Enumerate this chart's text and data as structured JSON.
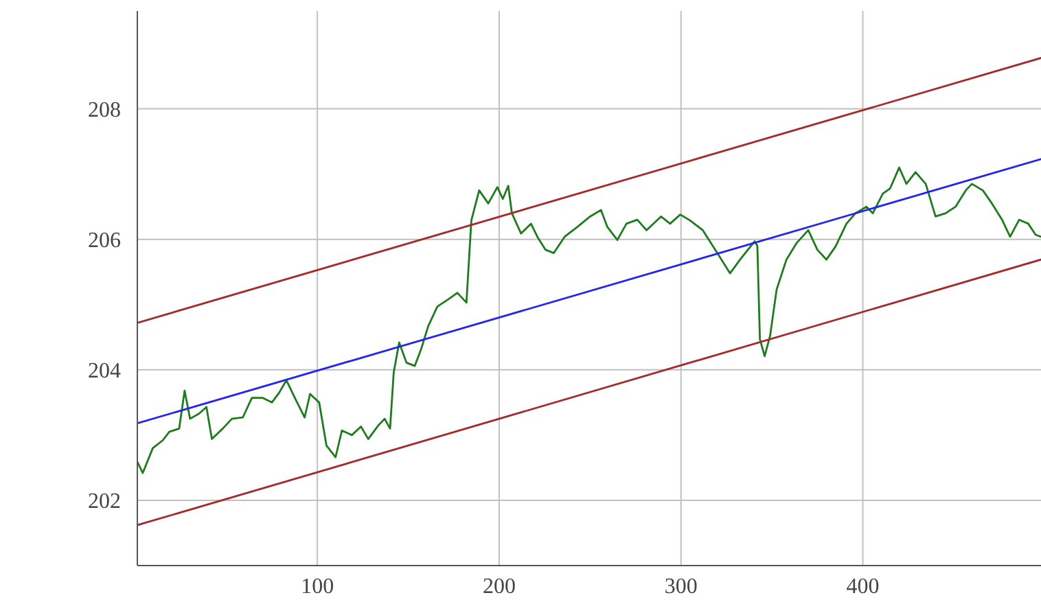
{
  "chart_data": {
    "type": "line",
    "xlim": [
      1,
      498
    ],
    "ylim": [
      201,
      209.5
    ],
    "xticks": [
      100,
      200,
      300,
      400
    ],
    "yticks": [
      202,
      204,
      206,
      208
    ],
    "grid": true,
    "series": [
      {
        "color": "#1e7b1e",
        "x": [
          1,
          4,
          9.5,
          15,
          18.6,
          24,
          27,
          30,
          35,
          39,
          42,
          48,
          53,
          59,
          64,
          70,
          75,
          79,
          83,
          88,
          93,
          96,
          101,
          105,
          110,
          113.5,
          119,
          124,
          128,
          133.6,
          137,
          140,
          142,
          145,
          149,
          153.6,
          157,
          161,
          166,
          172,
          177,
          182,
          184.7,
          189,
          194,
          199,
          202,
          205,
          207,
          212,
          217.5,
          221,
          225.5,
          230,
          236,
          243,
          250,
          256,
          259.5,
          265,
          270,
          276,
          281,
          289,
          294,
          299.6,
          305,
          312,
          320,
          327,
          332.5,
          340.5,
          342,
          343.4,
          346,
          349,
          352.6,
          358,
          363.5,
          370,
          375,
          380,
          385,
          391,
          396,
          402,
          405.5,
          411,
          415,
          420,
          424,
          429,
          434.6,
          440,
          445.6,
          451,
          456.6,
          460,
          466,
          471,
          476.6,
          481,
          486,
          491,
          495,
          498
        ],
        "values": [
          202.59,
          202.42,
          202.8,
          202.92,
          203.05,
          203.1,
          203.68,
          203.25,
          203.33,
          203.43,
          202.94,
          203.1,
          203.25,
          203.27,
          203.57,
          203.57,
          203.5,
          203.65,
          203.84,
          203.55,
          203.27,
          203.63,
          203.5,
          202.84,
          202.66,
          203.07,
          203.0,
          203.13,
          202.94,
          203.15,
          203.25,
          203.1,
          203.96,
          204.42,
          204.11,
          204.06,
          204.31,
          204.67,
          204.97,
          205.08,
          205.18,
          205.03,
          206.29,
          206.75,
          206.55,
          206.8,
          206.62,
          206.82,
          206.4,
          206.09,
          206.24,
          206.04,
          205.84,
          205.79,
          206.04,
          206.19,
          206.35,
          206.45,
          206.19,
          205.99,
          206.24,
          206.3,
          206.14,
          206.35,
          206.24,
          206.38,
          206.29,
          206.14,
          205.79,
          205.48,
          205.69,
          205.97,
          205.9,
          204.47,
          204.21,
          204.52,
          205.23,
          205.69,
          205.94,
          206.14,
          205.84,
          205.69,
          205.89,
          206.24,
          206.4,
          206.5,
          206.4,
          206.7,
          206.78,
          207.1,
          206.85,
          207.03,
          206.85,
          206.35,
          206.4,
          206.5,
          206.75,
          206.85,
          206.75,
          206.55,
          206.3,
          206.04,
          206.3,
          206.24,
          206.07,
          206.04
        ]
      },
      {
        "color": "#2424f0",
        "x": [
          1,
          498
        ],
        "values": [
          203.18,
          207.23
        ]
      },
      {
        "color": "#a52a2a",
        "x": [
          1,
          498
        ],
        "values": [
          204.72,
          208.78
        ]
      },
      {
        "color": "#a52a2a",
        "x": [
          1,
          498
        ],
        "values": [
          201.62,
          205.69
        ]
      }
    ]
  }
}
